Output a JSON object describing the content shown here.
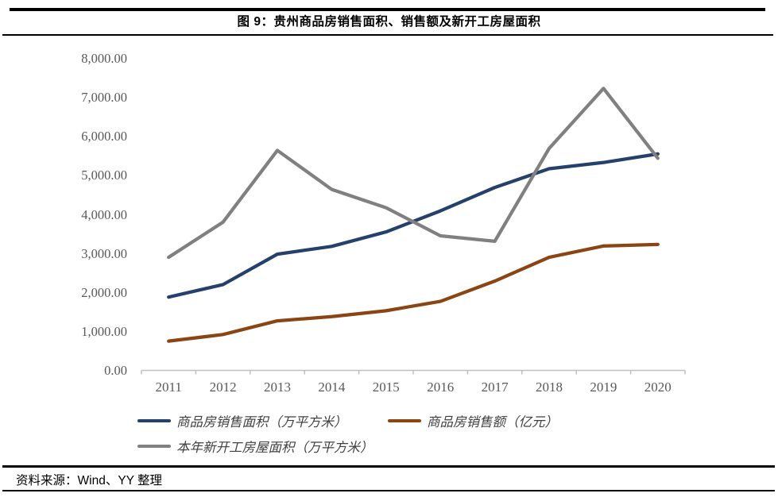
{
  "header": {
    "title": "图 9：贵州商品房销售面积、销售额及新开工房屋面积"
  },
  "footer": {
    "source": "资料来源：Wind、YY 整理"
  },
  "chart_data": {
    "type": "line",
    "title": "图 9：贵州商品房销售面积、销售额及新开工房屋面积",
    "categories": [
      "2011",
      "2012",
      "2013",
      "2014",
      "2015",
      "2016",
      "2017",
      "2018",
      "2019",
      "2020"
    ],
    "series": [
      {
        "name": "商品房销售面积（万平方米）",
        "color": "#24406B",
        "values": [
          1890,
          2210,
          2990,
          3190,
          3560,
          4100,
          4700,
          5180,
          5340,
          5560
        ]
      },
      {
        "name": "商品房销售额（亿元）",
        "color": "#8B4513",
        "values": [
          760,
          930,
          1280,
          1390,
          1540,
          1780,
          2300,
          2910,
          3200,
          3240
        ]
      },
      {
        "name": "本年新开工房屋面积（万平方米）",
        "color": "#808080",
        "values": [
          2910,
          3810,
          5650,
          4650,
          4180,
          3460,
          3320,
          5700,
          7240,
          5450
        ]
      }
    ],
    "ylim": [
      0,
      8000
    ],
    "ytick_step": 1000,
    "ytick_labels": [
      "0.00",
      "1,000.00",
      "2,000.00",
      "3,000.00",
      "4,000.00",
      "5,000.00",
      "6,000.00",
      "7,000.00",
      "8,000.00"
    ],
    "xlabel": "",
    "ylabel": "",
    "grid": false,
    "legend_position": "bottom",
    "axis_color": "#BFBFBF",
    "tick_label_color": "#595959",
    "legend_text_color": "#404040"
  }
}
